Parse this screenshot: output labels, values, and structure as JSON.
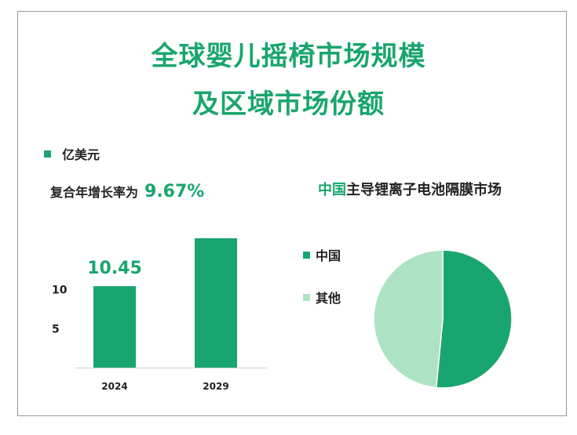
{
  "title": {
    "line1": "全球婴儿摇椅市场规模",
    "line2": "及区域市场份额"
  },
  "unit_legend": {
    "label": "亿美元"
  },
  "cagr": {
    "label": "复合年增长率为",
    "value": "9.67%"
  },
  "pie_title": {
    "highlight": "中国",
    "rest": "主导锂离子电池隔膜市场"
  },
  "colors": {
    "primary": "#19a56f",
    "secondary": "#ade3c3",
    "text": "#222222"
  },
  "chart_data": [
    {
      "type": "bar",
      "categories": [
        "2024",
        "2029"
      ],
      "values": [
        10.45,
        16.6
      ],
      "data_labels": [
        "10.45",
        ""
      ],
      "yticks": [
        "10",
        "5"
      ],
      "ytick_values": [
        10,
        5
      ],
      "ylim": [
        0,
        17
      ],
      "title": "",
      "xlabel": "",
      "ylabel": ""
    },
    {
      "type": "pie",
      "title": "中国主导锂离子电池隔膜市场",
      "labels": [
        "中国",
        "其他"
      ],
      "values": [
        51.5,
        48.5
      ]
    }
  ]
}
